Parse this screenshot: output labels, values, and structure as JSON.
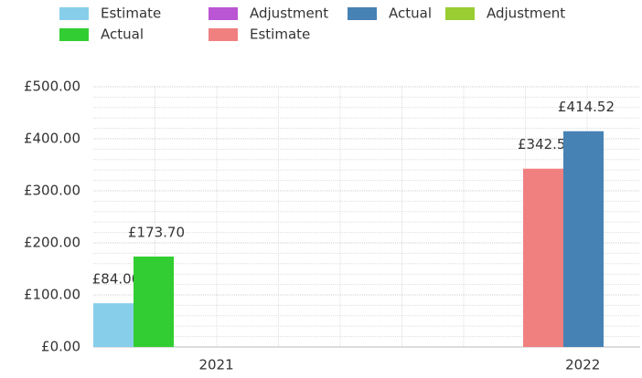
{
  "chart_data": {
    "type": "bar",
    "categories": [
      "2021",
      "2022"
    ],
    "series": [
      {
        "name": "Estimate",
        "color": "#87ceeb",
        "values": [
          84.0,
          null
        ],
        "value_labels": [
          "£84.00",
          null
        ]
      },
      {
        "name": "Adjustment",
        "color": "#ba55d3",
        "values": [
          null,
          null
        ],
        "value_labels": [
          null,
          null
        ]
      },
      {
        "name": "Actual",
        "color": "#4682b4",
        "values": [
          null,
          414.52
        ],
        "value_labels": [
          null,
          "£414.52"
        ]
      },
      {
        "name": "Adjustment",
        "color": "#9acd32",
        "values": [
          null,
          null
        ],
        "value_labels": [
          null,
          null
        ]
      },
      {
        "name": "Actual",
        "color": "#32cd32",
        "values": [
          173.7,
          null
        ],
        "value_labels": [
          "£173.70",
          null
        ]
      },
      {
        "name": "Estimate",
        "color": "#f08080",
        "values": [
          null,
          342.58
        ],
        "value_labels": [
          null,
          "£342.58"
        ]
      }
    ],
    "ylim": [
      0,
      500
    ],
    "yticks": [
      {
        "value": 0,
        "label": "£0.00"
      },
      {
        "value": 100,
        "label": "£100.00"
      },
      {
        "value": 200,
        "label": "£200.00"
      },
      {
        "value": 300,
        "label": "£300.00"
      },
      {
        "value": 400,
        "label": "£400.00"
      },
      {
        "value": 500,
        "label": "£500.00"
      }
    ],
    "grid": true,
    "legend": "top"
  }
}
